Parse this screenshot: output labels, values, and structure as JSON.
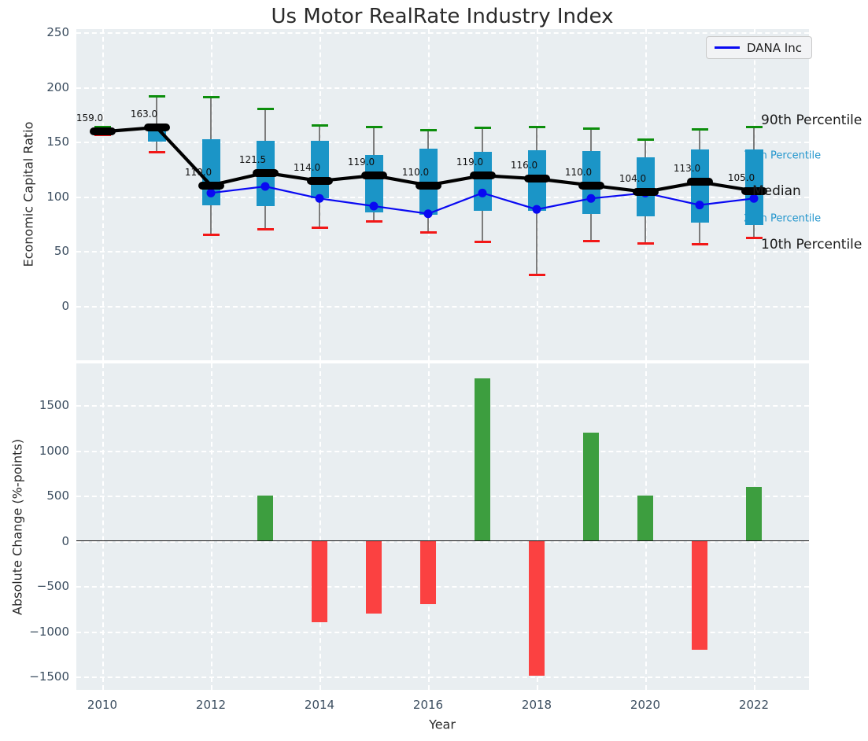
{
  "title": "Us Motor RealRate Industry Index",
  "legend": {
    "label": "DANA Inc"
  },
  "right_annotations": [
    {
      "id": "p90",
      "text": "90th Percentile"
    },
    {
      "id": "p75",
      "text": "75th Percentile"
    },
    {
      "id": "median",
      "text": "Median"
    },
    {
      "id": "p25",
      "text": "25th Percentile"
    },
    {
      "id": "p10",
      "text": "10th Percentile"
    }
  ],
  "colors": {
    "plot_bg": "#e9eef1",
    "grid": "#ffffff",
    "box_blue": "#1b95c7",
    "whisker_gray": "#7c7c7c",
    "p90_cap_green": "#0c8e0c",
    "p10_cap_red": "#f21717",
    "median_black": "#000000",
    "company_blue": "#0909f2",
    "bar_positive_green": "#3d9e3f",
    "bar_negative_red": "#fb4141",
    "tick_slate": "#3b4d5f",
    "annotation_blue": "#2496cd"
  },
  "chart_data": [
    {
      "type": "candlestick",
      "title": "Us Motor RealRate Industry Index",
      "ylabel": "Economic Capital Ratio",
      "ylim": [
        -50,
        253
      ],
      "grid": true,
      "legend_position": "upper right",
      "ytick_values": [
        250,
        200,
        150,
        100,
        50,
        0
      ],
      "ytick_labels": [
        "250",
        "200",
        "150",
        "100",
        "50",
        "0"
      ],
      "years": [
        2010,
        2011,
        2012,
        2013,
        2014,
        2015,
        2016,
        2017,
        2018,
        2019,
        2020,
        2021,
        2022
      ],
      "xtick_years": [
        2010,
        2012,
        2014,
        2016,
        2018,
        2020,
        2022
      ],
      "p10": [
        156,
        140,
        65,
        70,
        71,
        77,
        67,
        58,
        28,
        59,
        56.5,
        56,
        62
      ],
      "p25": [
        157,
        150,
        92,
        91,
        98.5,
        85,
        83,
        86.5,
        87,
        83.5,
        82,
        76,
        74
      ],
      "median": [
        159,
        163,
        110,
        121.5,
        114,
        119,
        110,
        119,
        116,
        110,
        104,
        113,
        105
      ],
      "p75": [
        161,
        160.5,
        152,
        151,
        151,
        138,
        143.5,
        140.5,
        142,
        141.5,
        135.5,
        143,
        143
      ],
      "p90": [
        163,
        191.5,
        191,
        180,
        164.5,
        163.5,
        160.5,
        162.5,
        163,
        162,
        151.5,
        161.5,
        163
      ],
      "median_labels": [
        "159.0",
        "163.0",
        "110.0",
        "121.5",
        "114.0",
        "119.0",
        "110.0",
        "119.0",
        "116.0",
        "110.0",
        "104.0",
        "113.0",
        "105.0"
      ],
      "company_series": {
        "name": "DANA Inc",
        "years": [
          2012,
          2013,
          2014,
          2015,
          2016,
          2017,
          2018,
          2019,
          2020,
          2021,
          2022
        ],
        "values": [
          103,
          109,
          98,
          91,
          84,
          103,
          88,
          98,
          103,
          92,
          98
        ]
      }
    },
    {
      "type": "bar",
      "ylabel": "Absolute Change (%-points)",
      "xlabel": "Year",
      "ylim": [
        -1660,
        1960
      ],
      "grid": true,
      "ytick_values": [
        1500,
        1000,
        500,
        0,
        -500,
        -1000,
        -1500
      ],
      "ytick_labels": [
        "1500",
        "1000",
        "500",
        "0",
        "−500",
        "−1000",
        "−1500"
      ],
      "years": [
        2010,
        2011,
        2012,
        2013,
        2014,
        2015,
        2016,
        2017,
        2018,
        2019,
        2020,
        2021,
        2022
      ],
      "xtick_years": [
        2010,
        2012,
        2014,
        2016,
        2018,
        2020,
        2022
      ],
      "xtick_labels": [
        "2010",
        "2012",
        "2014",
        "2016",
        "2018",
        "2020",
        "2022"
      ],
      "values": [
        0,
        0,
        0,
        500,
        -900,
        -800,
        -700,
        1800,
        -1490,
        1200,
        500,
        -1200,
        600
      ]
    }
  ]
}
